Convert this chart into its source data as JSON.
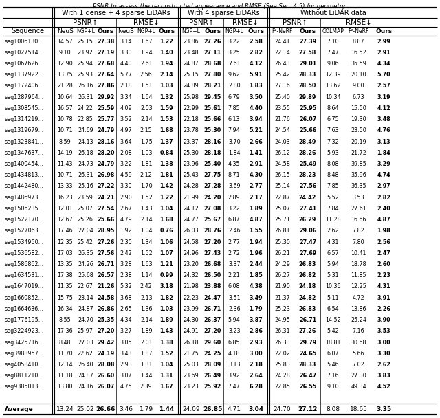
{
  "caption": "PSNR to assess the reconstructed appearance and RMSE (See Sec. 4.5) for geometry.",
  "rows": [
    [
      "seg1006130...",
      "14.57",
      "25.15",
      "27.38",
      "3.14",
      "1.67",
      "1.22",
      "23.86",
      "27.26",
      "3.22",
      "2.58",
      "24.41",
      "27.39",
      "7.10",
      "8.87",
      "2.99"
    ],
    [
      "seg1027514...",
      "9.10",
      "23.92",
      "27.19",
      "3.30",
      "1.94",
      "1.40",
      "23.48",
      "27.11",
      "3.25",
      "2.82",
      "22.14",
      "27.58",
      "7.47",
      "16.52",
      "2.91"
    ],
    [
      "seg1067626...",
      "12.90",
      "25.94",
      "27.68",
      "4.40",
      "2.61",
      "1.94",
      "24.87",
      "28.68",
      "7.61",
      "4.12",
      "26.43",
      "29.01",
      "9.06",
      "35.59",
      "4.34"
    ],
    [
      "seg1137922...",
      "13.75",
      "25.93",
      "27.64",
      "5.77",
      "2.56",
      "2.14",
      "25.15",
      "27.80",
      "9.62",
      "5.91",
      "25.42",
      "28.33",
      "12.39",
      "20.10",
      "5.70"
    ],
    [
      "seg1172406...",
      "21.28",
      "26.16",
      "27.86",
      "2.18",
      "1.51",
      "1.03",
      "24.89",
      "28.21",
      "2.80",
      "1.83",
      "27.16",
      "28.50",
      "13.62",
      "9.00",
      "2.57"
    ],
    [
      "seg1287964...",
      "10.64",
      "26.31",
      "29.92",
      "3.34",
      "1.64",
      "1.32",
      "25.98",
      "29.45",
      "6.79",
      "3.50",
      "25.40",
      "29.89",
      "10.34",
      "6.73",
      "3.19"
    ],
    [
      "seg1308545...",
      "16.57",
      "24.22",
      "25.59",
      "4.09",
      "2.03",
      "1.59",
      "22.99",
      "25.61",
      "7.85",
      "4.40",
      "23.55",
      "25.95",
      "8.64",
      "15.50",
      "4.12"
    ],
    [
      "seg1314219...",
      "10.78",
      "22.85",
      "25.77",
      "3.52",
      "2.14",
      "1.53",
      "22.18",
      "25.66",
      "6.13",
      "3.94",
      "21.76",
      "26.07",
      "6.75",
      "19.30",
      "3.48"
    ],
    [
      "seg1319679...",
      "10.71",
      "24.69",
      "24.79",
      "4.97",
      "2.15",
      "1.68",
      "23.78",
      "25.30",
      "7.94",
      "5.21",
      "24.54",
      "25.66",
      "7.63",
      "23.50",
      "4.76"
    ],
    [
      "seg1323841...",
      "8.59",
      "24.13",
      "28.16",
      "3.64",
      "1.75",
      "1.37",
      "23.37",
      "28.16",
      "3.70",
      "2.66",
      "24.03",
      "28.49",
      "7.32",
      "20.19",
      "3.13"
    ],
    [
      "seg1347637...",
      "14.19",
      "26.18",
      "28.20",
      "2.08",
      "1.03",
      "0.84",
      "25.30",
      "28.18",
      "1.84",
      "1.41",
      "26.12",
      "28.26",
      "5.93",
      "21.72",
      "1.84"
    ],
    [
      "seg1400454...",
      "11.43",
      "24.73",
      "24.79",
      "3.22",
      "1.81",
      "1.38",
      "23.96",
      "25.40",
      "4.35",
      "2.91",
      "24.58",
      "25.49",
      "8.08",
      "39.85",
      "3.29"
    ],
    [
      "seg1434813...",
      "10.71",
      "26.31",
      "26.98",
      "4.59",
      "2.12",
      "1.81",
      "25.43",
      "27.75",
      "8.71",
      "4.30",
      "26.15",
      "28.23",
      "8.48",
      "35.96",
      "4.74"
    ],
    [
      "seg1442480...",
      "13.33",
      "25.16",
      "27.22",
      "3.30",
      "1.70",
      "1.42",
      "24.28",
      "27.28",
      "3.69",
      "2.77",
      "25.14",
      "27.56",
      "7.85",
      "36.35",
      "2.97"
    ],
    [
      "seg1486973...",
      "16.23",
      "23.59",
      "24.21",
      "2.90",
      "1.52",
      "1.22",
      "21.99",
      "24.20",
      "2.89",
      "2.17",
      "22.87",
      "24.42",
      "5.52",
      "3.53",
      "2.82"
    ],
    [
      "seg1506235...",
      "12.01",
      "25.07",
      "27.54",
      "2.67",
      "1.43",
      "1.04",
      "24.12",
      "27.08",
      "3.22",
      "1.89",
      "25.07",
      "27.41",
      "7.84",
      "27.61",
      "2.40"
    ],
    [
      "seg1522170...",
      "12.67",
      "25.26",
      "25.66",
      "4.79",
      "2.14",
      "1.68",
      "24.77",
      "25.67",
      "6.87",
      "4.87",
      "25.71",
      "26.29",
      "11.28",
      "16.66",
      "4.87"
    ],
    [
      "seg1527063...",
      "17.46",
      "27.04",
      "28.95",
      "1.92",
      "1.04",
      "0.76",
      "26.03",
      "28.76",
      "2.46",
      "1.55",
      "26.81",
      "29.06",
      "2.62",
      "7.82",
      "1.98"
    ],
    [
      "seg1534950...",
      "12.35",
      "25.42",
      "27.26",
      "2.30",
      "1.34",
      "1.06",
      "24.58",
      "27.20",
      "2.77",
      "1.94",
      "25.30",
      "27.47",
      "4.31",
      "7.80",
      "2.56"
    ],
    [
      "seg1536582...",
      "17.03",
      "26.35",
      "27.56",
      "2.42",
      "1.52",
      "1.07",
      "24.96",
      "27.43",
      "2.72",
      "1.96",
      "26.21",
      "27.69",
      "6.57",
      "10.41",
      "2.47"
    ],
    [
      "seg1586862...",
      "13.35",
      "24.26",
      "26.71",
      "3.28",
      "1.63",
      "1.21",
      "23.20",
      "26.68",
      "3.37",
      "2.44",
      "24.29",
      "26.83",
      "5.94",
      "18.78",
      "2.60"
    ],
    [
      "seg1634531...",
      "17.38",
      "25.68",
      "26.57",
      "2.38",
      "1.14",
      "0.99",
      "24.32",
      "26.50",
      "2.21",
      "1.85",
      "26.27",
      "26.82",
      "5.31",
      "11.85",
      "2.23"
    ],
    [
      "seg1647019...",
      "11.35",
      "22.67",
      "21.26",
      "5.32",
      "2.42",
      "3.18",
      "21.98",
      "23.88",
      "6.08",
      "4.38",
      "21.90",
      "24.18",
      "10.36",
      "12.25",
      "4.31"
    ],
    [
      "seg1660852...",
      "15.75",
      "23.14",
      "24.58",
      "3.68",
      "2.13",
      "1.82",
      "22.23",
      "24.47",
      "3.51",
      "3.49",
      "21.37",
      "24.82",
      "5.11",
      "4.72",
      "3.91"
    ],
    [
      "seg1664636...",
      "16.34",
      "24.87",
      "26.86",
      "2.65",
      "1.36",
      "1.03",
      "23.99",
      "26.71",
      "2.36",
      "1.79",
      "25.23",
      "26.83",
      "6.54",
      "13.86",
      "2.26"
    ],
    [
      "seg1776195...",
      "8.55",
      "24.70",
      "25.35",
      "4.34",
      "2.14",
      "1.89",
      "24.30",
      "26.37",
      "5.94",
      "3.87",
      "24.95",
      "26.71",
      "14.52",
      "25.24",
      "3.90"
    ],
    [
      "seg3224923...",
      "17.36",
      "25.97",
      "27.20",
      "3.27",
      "1.89",
      "1.43",
      "24.91",
      "27.20",
      "3.23",
      "2.86",
      "26.31",
      "27.26",
      "5.42",
      "7.16",
      "3.53"
    ],
    [
      "seg3425716...",
      "8.48",
      "27.03",
      "29.42",
      "3.05",
      "2.01",
      "1.38",
      "26.18",
      "29.60",
      "6.85",
      "2.93",
      "26.33",
      "29.79",
      "18.81",
      "30.68",
      "3.00"
    ],
    [
      "seg3988957...",
      "11.70",
      "22.62",
      "24.19",
      "3.43",
      "1.87",
      "1.52",
      "21.75",
      "24.25",
      "4.18",
      "3.00",
      "22.02",
      "24.65",
      "6.07",
      "5.66",
      "3.30"
    ],
    [
      "seg4058410...",
      "12.14",
      "26.40",
      "28.08",
      "2.93",
      "1.31",
      "1.04",
      "25.03",
      "28.09",
      "3.13",
      "2.18",
      "25.83",
      "28.33",
      "5.46",
      "7.02",
      "2.62"
    ],
    [
      "seg8811210...",
      "11.18",
      "24.87",
      "26.60",
      "3.07",
      "1.44",
      "1.31",
      "23.69",
      "26.49",
      "3.92",
      "2.64",
      "24.28",
      "26.47",
      "7.16",
      "27.30",
      "3.83"
    ],
    [
      "seg9385013...",
      "13.80",
      "24.16",
      "26.07",
      "4.75",
      "2.39",
      "1.67",
      "23.23",
      "25.92",
      "7.47",
      "6.28",
      "22.85",
      "26.55",
      "9.10",
      "49.34",
      "4.52"
    ]
  ],
  "average": [
    "Average",
    "13.24",
    "25.02",
    "26.66",
    "3.46",
    "1.79",
    "1.44",
    "24.09",
    "26.85",
    "4.71",
    "3.04",
    "24.70",
    "27.12",
    "8.08",
    "18.65",
    "3.35"
  ],
  "bold_indices": [
    3,
    6,
    8,
    10,
    12,
    15
  ],
  "sub_labels": [
    "NeuS",
    "NGP+L",
    "Ours",
    "NeuS",
    "NGP+L",
    "Ours",
    "NGP+L",
    "Ours",
    "NGP+L",
    "Ours",
    "F²-NeRF",
    "Ours",
    "COLMAP",
    "F²-NeRF",
    "Ours"
  ],
  "sec1_title": "With 1 dense + 4 sparse LiDARs",
  "sec2_title": "With 4 sparse LiDARs",
  "sec3_title": "Without LiDAR data"
}
